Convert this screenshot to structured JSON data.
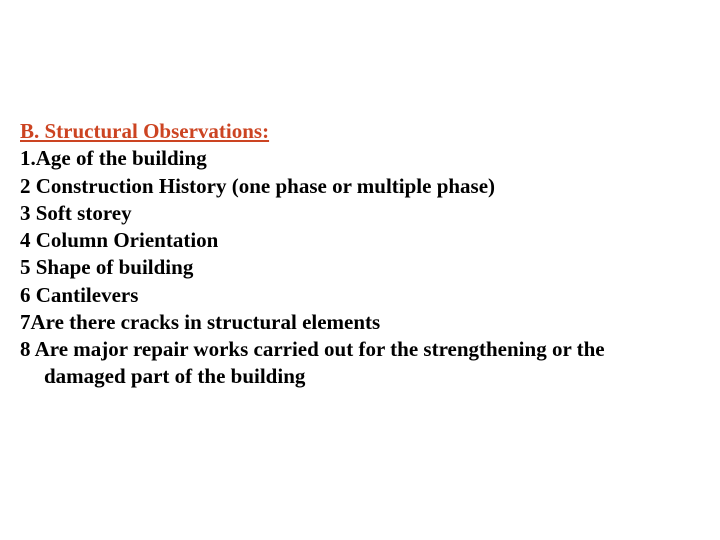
{
  "heading": "B. Structural Observations:",
  "items": {
    "i1": "1.Age of the building",
    "i2": "2 Construction History (one phase or multiple phase)",
    "i3": "3 Soft storey",
    "i4": "4 Column Orientation",
    "i5": "5 Shape of building",
    "i6": "6 Cantilevers",
    "i7": "7Are there cracks in structural elements",
    "i8a": "8 Are major repair works carried out for the strengthening or the",
    "i8b": "damaged part of the building"
  },
  "colors": {
    "heading_color": "#cc4422",
    "text_color": "#000000",
    "background": "#ffffff"
  },
  "typography": {
    "font_family": "Times New Roman",
    "font_size_pt": 16,
    "font_weight": "bold"
  }
}
